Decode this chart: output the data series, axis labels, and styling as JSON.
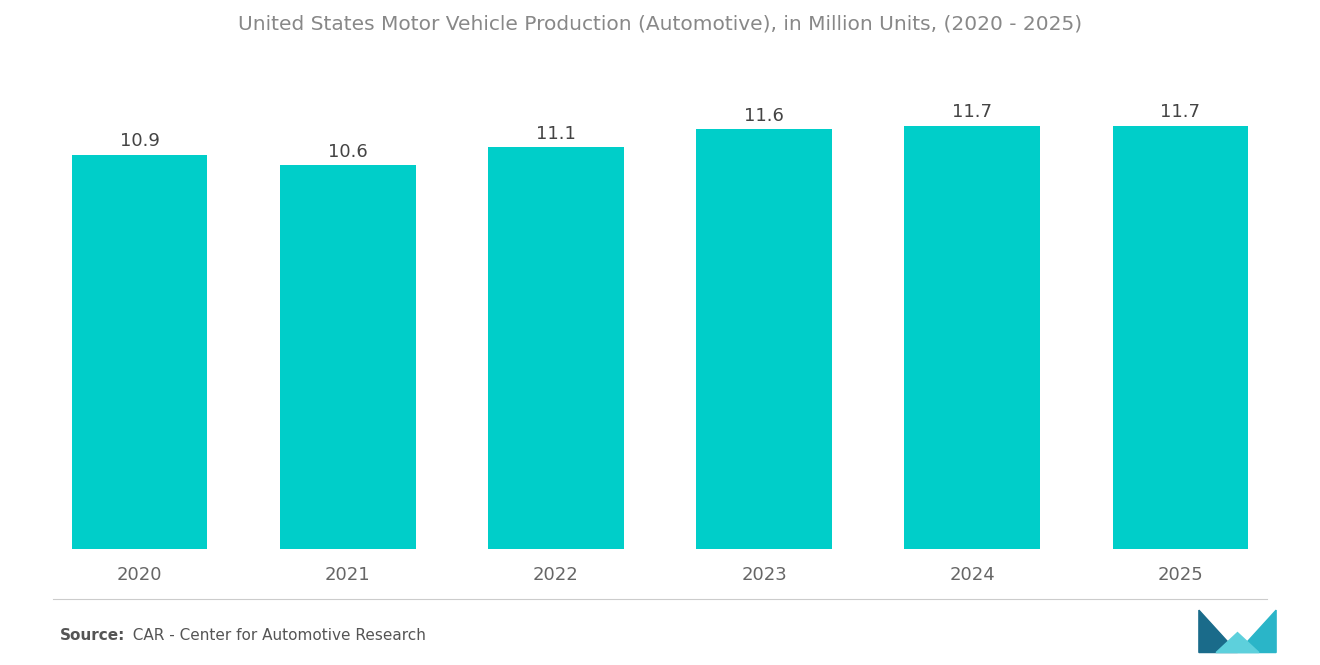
{
  "title": "United States Motor Vehicle Production (Automotive), in Million Units, (2020 - 2025)",
  "categories": [
    "2020",
    "2021",
    "2022",
    "2023",
    "2024",
    "2025"
  ],
  "values": [
    10.9,
    10.6,
    11.1,
    11.6,
    11.7,
    11.7
  ],
  "bar_color": "#00CEC9",
  "background_color": "#ffffff",
  "title_color": "#888888",
  "label_color": "#444444",
  "tick_color": "#666666",
  "source_bold": "Source:",
  "source_rest": "  CAR - Center for Automotive Research",
  "ylim": [
    0,
    13.5
  ],
  "bar_width": 0.65,
  "title_fontsize": 14.5,
  "label_fontsize": 13,
  "tick_fontsize": 13,
  "source_fontsize": 11
}
